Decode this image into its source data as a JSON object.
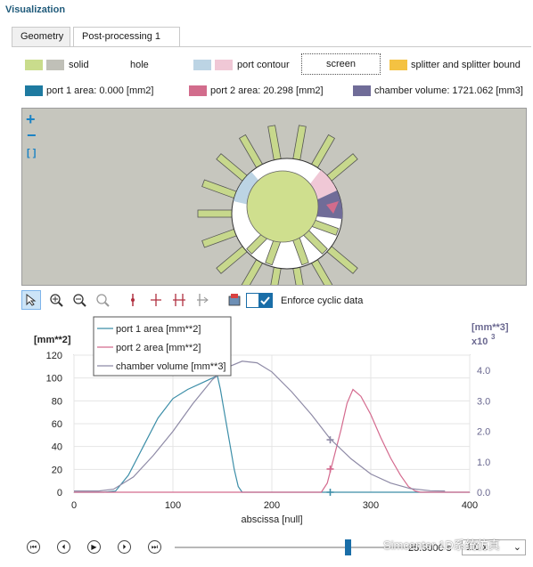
{
  "window": {
    "title": "Visualization"
  },
  "tabs": [
    {
      "label": "Geometry",
      "active": false
    },
    {
      "label": "Post-processing 1",
      "active": true
    }
  ],
  "legend": {
    "solid": {
      "label": "solid",
      "colors": [
        "#c9dc8c",
        "#c0c0b8"
      ]
    },
    "hole": {
      "label": "hole",
      "colors": [
        "#ffffff"
      ]
    },
    "port_contour": {
      "label": "port contour",
      "colors": [
        "#bcd4e4",
        "#f0c8d6"
      ]
    },
    "screen": {
      "label": "screen"
    },
    "splitter": {
      "label": "splitter and splitter bound",
      "colors": [
        "#f4c242"
      ]
    },
    "port1": {
      "label": "port 1 area: 0.000 [mm2]",
      "color": "#1e7aa0"
    },
    "port2": {
      "label": "port 2 area: 20.298 [mm2]",
      "color": "#d26c8c"
    },
    "chamber": {
      "label": "chamber volume: 1721.062 [mm3]",
      "color": "#706c98"
    }
  },
  "viewer": {
    "zoom_in": "+",
    "zoom_out": "−",
    "fit": "[ ]"
  },
  "toolbar": {
    "enforce_label": "Enforce cyclic data",
    "enforce_checked": true
  },
  "chart_data": {
    "type": "line",
    "xlabel": "abscissa [null]",
    "ylabel_left": "[mm**2]",
    "ylabel_right": "[mm**3]",
    "right_multiplier": "x10",
    "right_multiplier_exp": "3",
    "xlim": [
      0,
      400
    ],
    "ylim_left": [
      0,
      120
    ],
    "ylim_right": [
      0,
      4.5
    ],
    "x_ticks": [
      "0",
      "100",
      "200",
      "300",
      "400"
    ],
    "y_ticks_left": [
      "0",
      "20",
      "40",
      "60",
      "80",
      "100",
      "120"
    ],
    "y_ticks_right": [
      "0.0",
      "1.0",
      "2.0",
      "3.0",
      "4.0"
    ],
    "y_tick_values_right": [
      0,
      1,
      2,
      3,
      4
    ],
    "cursor_x": 259,
    "series": [
      {
        "name": "port 1 area [mm**2]",
        "color": "#3c8ea8",
        "axis": "left",
        "points": [
          [
            0,
            0
          ],
          [
            30,
            0
          ],
          [
            42,
            1
          ],
          [
            55,
            15
          ],
          [
            70,
            40
          ],
          [
            85,
            65
          ],
          [
            100,
            82
          ],
          [
            115,
            90
          ],
          [
            130,
            96
          ],
          [
            140,
            100
          ],
          [
            145,
            102
          ],
          [
            148,
            90
          ],
          [
            152,
            70
          ],
          [
            157,
            45
          ],
          [
            162,
            20
          ],
          [
            166,
            5
          ],
          [
            170,
            0
          ],
          [
            400,
            0
          ]
        ]
      },
      {
        "name": "port 2 area [mm**2]",
        "color": "#d46a8e",
        "axis": "left",
        "points": [
          [
            0,
            0
          ],
          [
            250,
            0
          ],
          [
            256,
            8
          ],
          [
            262,
            28
          ],
          [
            270,
            55
          ],
          [
            276,
            78
          ],
          [
            282,
            90
          ],
          [
            290,
            84
          ],
          [
            300,
            68
          ],
          [
            310,
            48
          ],
          [
            320,
            30
          ],
          [
            330,
            15
          ],
          [
            338,
            5
          ],
          [
            345,
            1
          ],
          [
            350,
            0
          ],
          [
            400,
            0
          ]
        ]
      },
      {
        "name": "chamber volume [mm**3]",
        "color": "#8e8aa6",
        "axis": "right",
        "points": [
          [
            0,
            0.04
          ],
          [
            25,
            0.04
          ],
          [
            40,
            0.1
          ],
          [
            60,
            0.5
          ],
          [
            80,
            1.2
          ],
          [
            100,
            2.0
          ],
          [
            120,
            2.9
          ],
          [
            140,
            3.7
          ],
          [
            155,
            4.1
          ],
          [
            170,
            4.3
          ],
          [
            185,
            4.25
          ],
          [
            200,
            3.95
          ],
          [
            220,
            3.3
          ],
          [
            240,
            2.55
          ],
          [
            259,
            1.75
          ],
          [
            280,
            1.1
          ],
          [
            300,
            0.6
          ],
          [
            320,
            0.3
          ],
          [
            340,
            0.12
          ],
          [
            360,
            0.05
          ],
          [
            375,
            0.04
          ]
        ]
      }
    ],
    "cursor_markers": [
      {
        "series": 0,
        "value": 0,
        "axis": "left"
      },
      {
        "series": 1,
        "value": 20.298,
        "axis": "left"
      },
      {
        "series": 2,
        "value": 1.721,
        "axis": "right"
      }
    ]
  },
  "playback": {
    "time": "25.9000 s",
    "speed": "1.0 x",
    "progress": 0.72
  },
  "watermark": {
    "text": "Simcenter 1D系统仿真"
  }
}
